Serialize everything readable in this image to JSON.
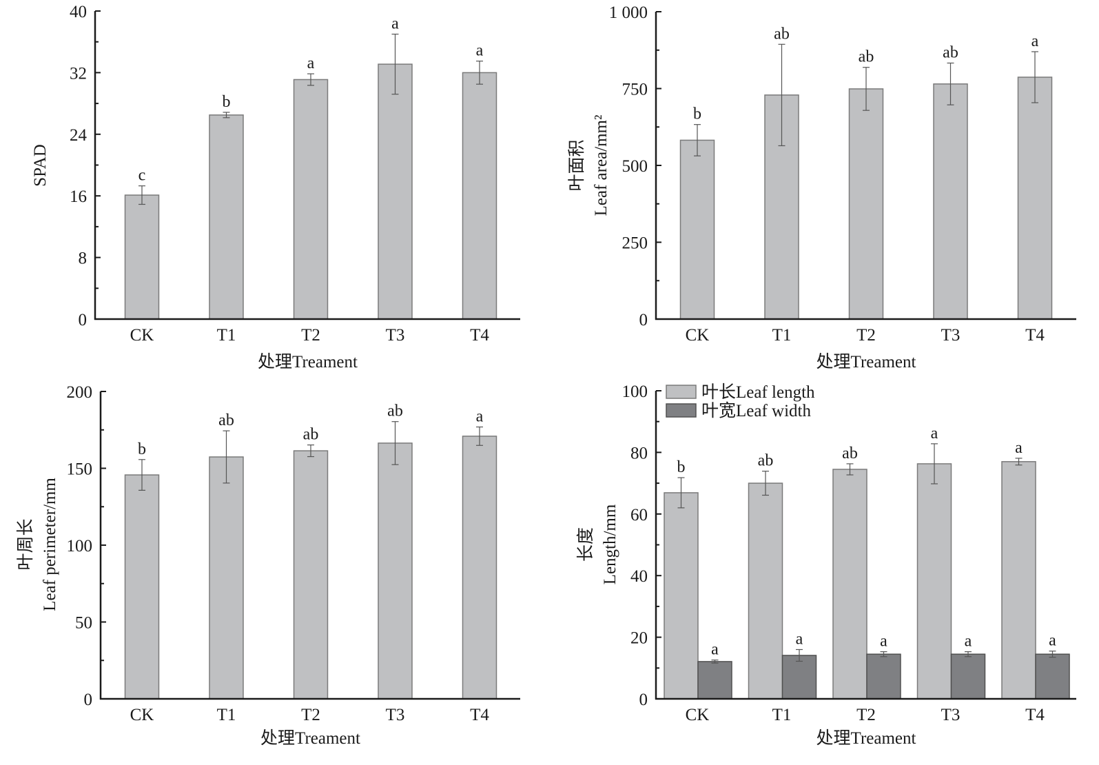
{
  "colors": {
    "bar_primary": "#bfc0c2",
    "bar_primary_stroke": "#7a7a7a",
    "bar_secondary": "#7f8083",
    "bar_secondary_stroke": "#505050",
    "axis": "#1a1a1a",
    "error_bar": "#555555"
  },
  "chart_data": [
    {
      "id": "spad",
      "type": "bar",
      "title": "",
      "xlabel": "处理Treament",
      "ylabel": [
        "SPAD"
      ],
      "categories": [
        "CK",
        "T1",
        "T2",
        "T3",
        "T4"
      ],
      "ylim": [
        0,
        40
      ],
      "yticks": [
        0,
        8,
        16,
        24,
        32,
        40
      ],
      "ytick_labels": [
        "0",
        "8",
        "16",
        "24",
        "32",
        "40"
      ],
      "minor_ticks": true,
      "grid": false,
      "series": [
        {
          "name": "SPAD",
          "values": [
            16.1,
            26.5,
            31.1,
            33.1,
            32.0
          ],
          "errors": [
            1.2,
            0.35,
            0.75,
            3.9,
            1.5
          ],
          "significance": [
            "c",
            "b",
            "a",
            "a",
            "a"
          ]
        }
      ]
    },
    {
      "id": "leaf-area",
      "type": "bar",
      "title": "",
      "xlabel": "处理Treament",
      "ylabel": [
        "叶面积",
        "Leaf area/mm²"
      ],
      "categories": [
        "CK",
        "T1",
        "T2",
        "T3",
        "T4"
      ],
      "ylim": [
        0,
        1000
      ],
      "yticks": [
        0,
        250,
        500,
        750,
        1000
      ],
      "ytick_labels": [
        "0",
        "250",
        "500",
        "750",
        "1 000"
      ],
      "minor_ticks": true,
      "grid": false,
      "series": [
        {
          "name": "Leaf area",
          "values": [
            582,
            729,
            749,
            765,
            787
          ],
          "errors": [
            51,
            165,
            70,
            68,
            83
          ],
          "significance": [
            "b",
            "ab",
            "ab",
            "ab",
            "a"
          ]
        }
      ]
    },
    {
      "id": "leaf-perimeter",
      "type": "bar",
      "title": "",
      "xlabel": "处理Treament",
      "ylabel": [
        "叶周长",
        "Leaf perimeter/mm"
      ],
      "categories": [
        "CK",
        "T1",
        "T2",
        "T3",
        "T4"
      ],
      "ylim": [
        0,
        200
      ],
      "yticks": [
        0,
        50,
        100,
        150,
        200
      ],
      "ytick_labels": [
        "0",
        "50",
        "100",
        "150",
        "200"
      ],
      "minor_ticks": true,
      "grid": false,
      "series": [
        {
          "name": "Leaf perimeter",
          "values": [
            145.7,
            157.4,
            161.4,
            166.4,
            170.9
          ],
          "errors": [
            10,
            17,
            3.8,
            14,
            6
          ],
          "significance": [
            "b",
            "ab",
            "ab",
            "ab",
            "a"
          ]
        }
      ]
    },
    {
      "id": "leaf-length-width",
      "type": "bar",
      "title": "",
      "xlabel": "处理Treament",
      "ylabel": [
        "长度",
        "Length/mm"
      ],
      "categories": [
        "CK",
        "T1",
        "T2",
        "T3",
        "T4"
      ],
      "ylim": [
        0,
        100
      ],
      "yticks": [
        0,
        20,
        40,
        60,
        80,
        100
      ],
      "ytick_labels": [
        "0",
        "20",
        "40",
        "60",
        "80",
        "100"
      ],
      "minor_ticks": true,
      "grid": false,
      "legend_position": "top-left",
      "series": [
        {
          "name": "叶长Leaf length",
          "values": [
            66.9,
            70.0,
            74.5,
            76.3,
            77.0
          ],
          "errors": [
            4.9,
            3.9,
            1.8,
            6.5,
            1.1
          ],
          "significance": [
            "b",
            "ab",
            "ab",
            "a",
            "a"
          ]
        },
        {
          "name": "叶宽Leaf width",
          "values": [
            12.1,
            14.1,
            14.5,
            14.5,
            14.5
          ],
          "errors": [
            0.5,
            1.9,
            0.8,
            0.8,
            1.0
          ],
          "significance": [
            "a",
            "a",
            "a",
            "a",
            "a"
          ]
        }
      ]
    }
  ]
}
